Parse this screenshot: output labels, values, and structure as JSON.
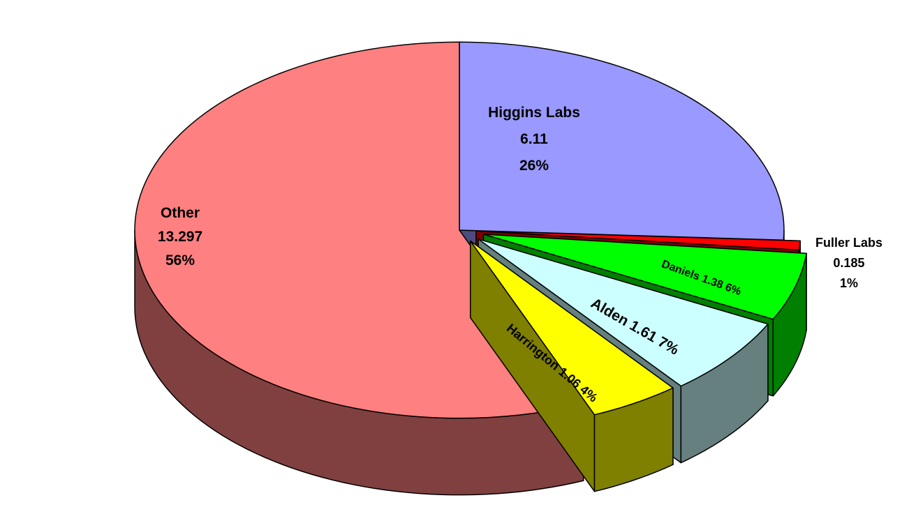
{
  "chart_data": {
    "type": "pie",
    "title": "",
    "three_d": true,
    "exploded": true,
    "slices": [
      {
        "name": "Higgins Labs",
        "value": 6.11,
        "percent": "26%",
        "color": "#9999FF",
        "side_color": "#4C4C7F",
        "label": "Higgins Labs\n6.11\n26%"
      },
      {
        "name": "Fuller Labs",
        "value": 0.185,
        "percent": "1%",
        "color": "#FF0000",
        "side_color": "#7F0000",
        "label": "Fuller Labs\n0.185\n1%"
      },
      {
        "name": "Daniels",
        "value": 1.38,
        "percent": "6%",
        "color": "#00FF00",
        "side_color": "#007F00",
        "label": "Daniels 1.38 6%"
      },
      {
        "name": "Alden",
        "value": 1.61,
        "percent": "7%",
        "color": "#CCFFFF",
        "side_color": "#667F7F",
        "label": "Alden 1.61 7%"
      },
      {
        "name": "Harrington",
        "value": 1.06,
        "percent": "4%",
        "color": "#FFFF00",
        "side_color": "#7F7F00",
        "label": "Harrington 1.06 4%"
      },
      {
        "name": "Other",
        "value": 13.297,
        "percent": "56%",
        "color": "#FF8080",
        "side_color": "#804040",
        "label": "Other\n13.297\n56%"
      }
    ]
  }
}
